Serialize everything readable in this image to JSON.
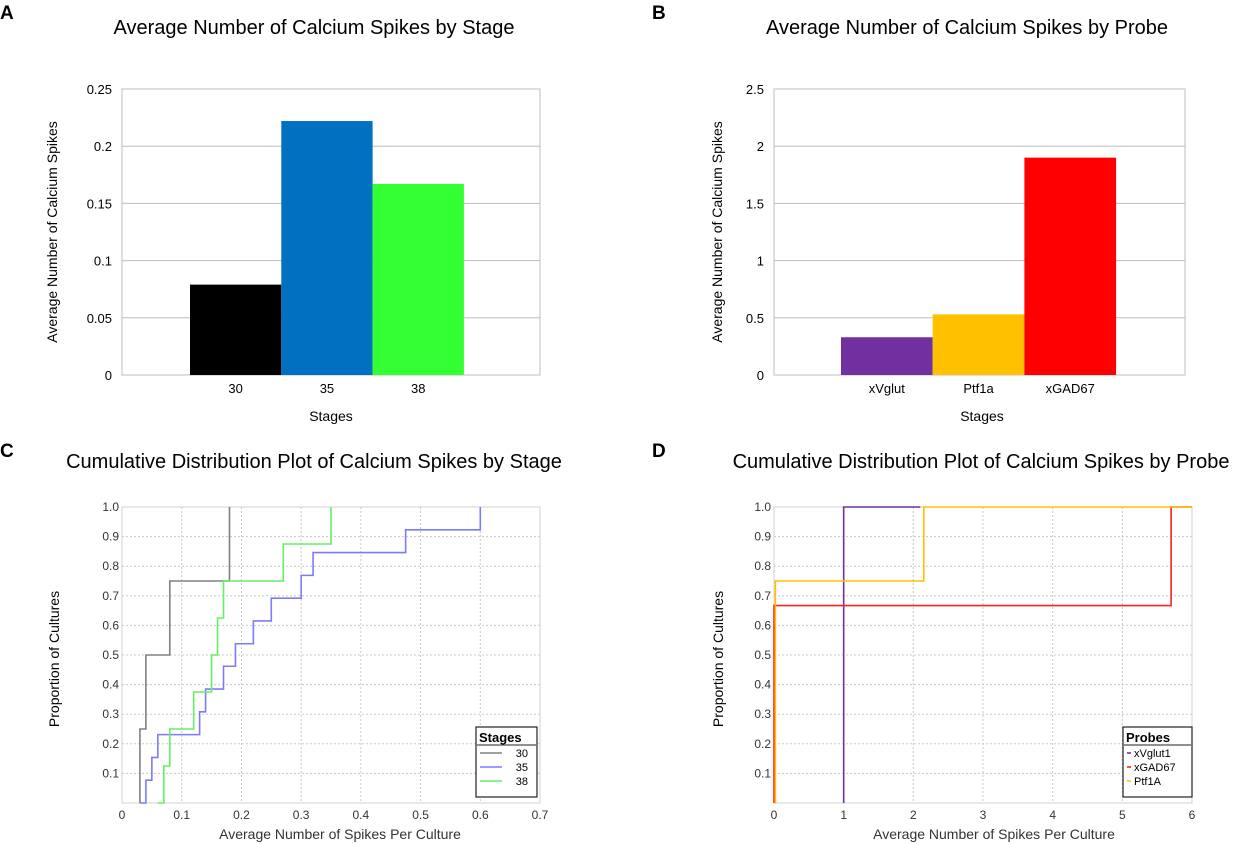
{
  "chart_data": [
    {
      "panel": "A",
      "type": "bar",
      "title": "Average Number of Calcium Spikes by Stage",
      "xlabel": "Stages",
      "ylabel": "Average Number of Calcium Spikes",
      "categories": [
        "30",
        "35",
        "38"
      ],
      "values": [
        0.079,
        0.222,
        0.167
      ],
      "colors": [
        "#000000",
        "#0070c0",
        "#33ff33"
      ],
      "ylim": [
        0,
        0.25
      ],
      "yticks": [
        "0",
        "0.05",
        "0.1",
        "0.15",
        "0.2",
        "0.25"
      ],
      "grid": true
    },
    {
      "panel": "B",
      "type": "bar",
      "title": "Average Number of Calcium Spikes by Probe",
      "xlabel": "Stages",
      "ylabel": "Average Number of Calcium Spikes",
      "categories": [
        "xVglut",
        "Ptf1a",
        "xGAD67"
      ],
      "values": [
        0.33,
        0.53,
        1.9
      ],
      "colors": [
        "#7030a0",
        "#ffc000",
        "#ff0000"
      ],
      "ylim": [
        0,
        2.5
      ],
      "yticks": [
        "0",
        "0.5",
        "1",
        "1.5",
        "2",
        "2.5"
      ],
      "grid": true
    },
    {
      "panel": "C",
      "type": "line",
      "subtype": "step",
      "title": "Cumulative Distribution Plot of Calcium Spikes by Stage",
      "xlabel": "Average Number of Spikes Per Culture",
      "ylabel": "Proportion of Cultures",
      "xlim": [
        0,
        0.7
      ],
      "ylim": [
        0,
        1.0
      ],
      "xticks": [
        "0",
        "0.1",
        "0.2",
        "0.3",
        "0.4",
        "0.5",
        "0.6",
        "0.7"
      ],
      "yticks": [
        "0.1",
        "0.2",
        "0.3",
        "0.4",
        "0.5",
        "0.6",
        "0.7",
        "0.8",
        "0.9",
        "1.0"
      ],
      "legend_title": "Stages",
      "legend_position": "bottom-right",
      "grid": true,
      "series": [
        {
          "name": "30",
          "color": "#808080",
          "x": [
            0.03,
            0.03,
            0.04,
            0.08,
            0.18
          ],
          "y": [
            0,
            0.25,
            0.5,
            0.75,
            1.0
          ]
        },
        {
          "name": "35",
          "color": "#7b7bff",
          "x": [
            0.03,
            0.04,
            0.05,
            0.06,
            0.13,
            0.14,
            0.15,
            0.17,
            0.19,
            0.2,
            0.22,
            0.25,
            0.27,
            0.3,
            0.32,
            0.475,
            0.6
          ],
          "y": [
            0,
            0.077,
            0.154,
            0.231,
            0.308,
            0.385,
            0.385,
            0.462,
            0.538,
            0.538,
            0.615,
            0.692,
            0.692,
            0.769,
            0.846,
            0.923,
            1.0
          ]
        },
        {
          "name": "38",
          "color": "#66ee66",
          "x": [
            0.06,
            0.07,
            0.08,
            0.1,
            0.12,
            0.15,
            0.16,
            0.17,
            0.27,
            0.35
          ],
          "y": [
            0,
            0.125,
            0.25,
            0.25,
            0.375,
            0.5,
            0.625,
            0.75,
            0.875,
            1.0
          ]
        }
      ]
    },
    {
      "panel": "D",
      "type": "line",
      "subtype": "step",
      "title": "Cumulative Distribution Plot of Calcium Spikes by Probe",
      "xlabel": "Average Number of Spikes Per Culture",
      "ylabel": "Proportion of Cultures",
      "xlim": [
        0,
        6
      ],
      "ylim": [
        0,
        1.0
      ],
      "xticks": [
        "0",
        "1",
        "2",
        "3",
        "4",
        "5",
        "6"
      ],
      "yticks": [
        "0.1",
        "0.2",
        "0.3",
        "0.4",
        "0.5",
        "0.6",
        "0.7",
        "0.8",
        "0.9",
        "1.0"
      ],
      "legend_title": "Probes",
      "legend_position": "bottom-right",
      "grid": true,
      "series": [
        {
          "name": "xVglut1",
          "color": "#7030a0",
          "x": [
            1.0,
            1.0,
            2.1
          ],
          "y": [
            0.667,
            1.0,
            1.0
          ]
        },
        {
          "name": "xGAD67",
          "color": "#ff2020",
          "x": [
            0,
            5.7,
            6.0
          ],
          "y": [
            0.667,
            1.0,
            1.0
          ]
        },
        {
          "name": "Ptf1A",
          "color": "#ffc000",
          "x": [
            0.02,
            0.02,
            2.15,
            6.0
          ],
          "y": [
            0,
            0.75,
            1.0,
            1.0
          ]
        }
      ]
    }
  ],
  "panel_letters": [
    "A",
    "B",
    "C",
    "D"
  ]
}
